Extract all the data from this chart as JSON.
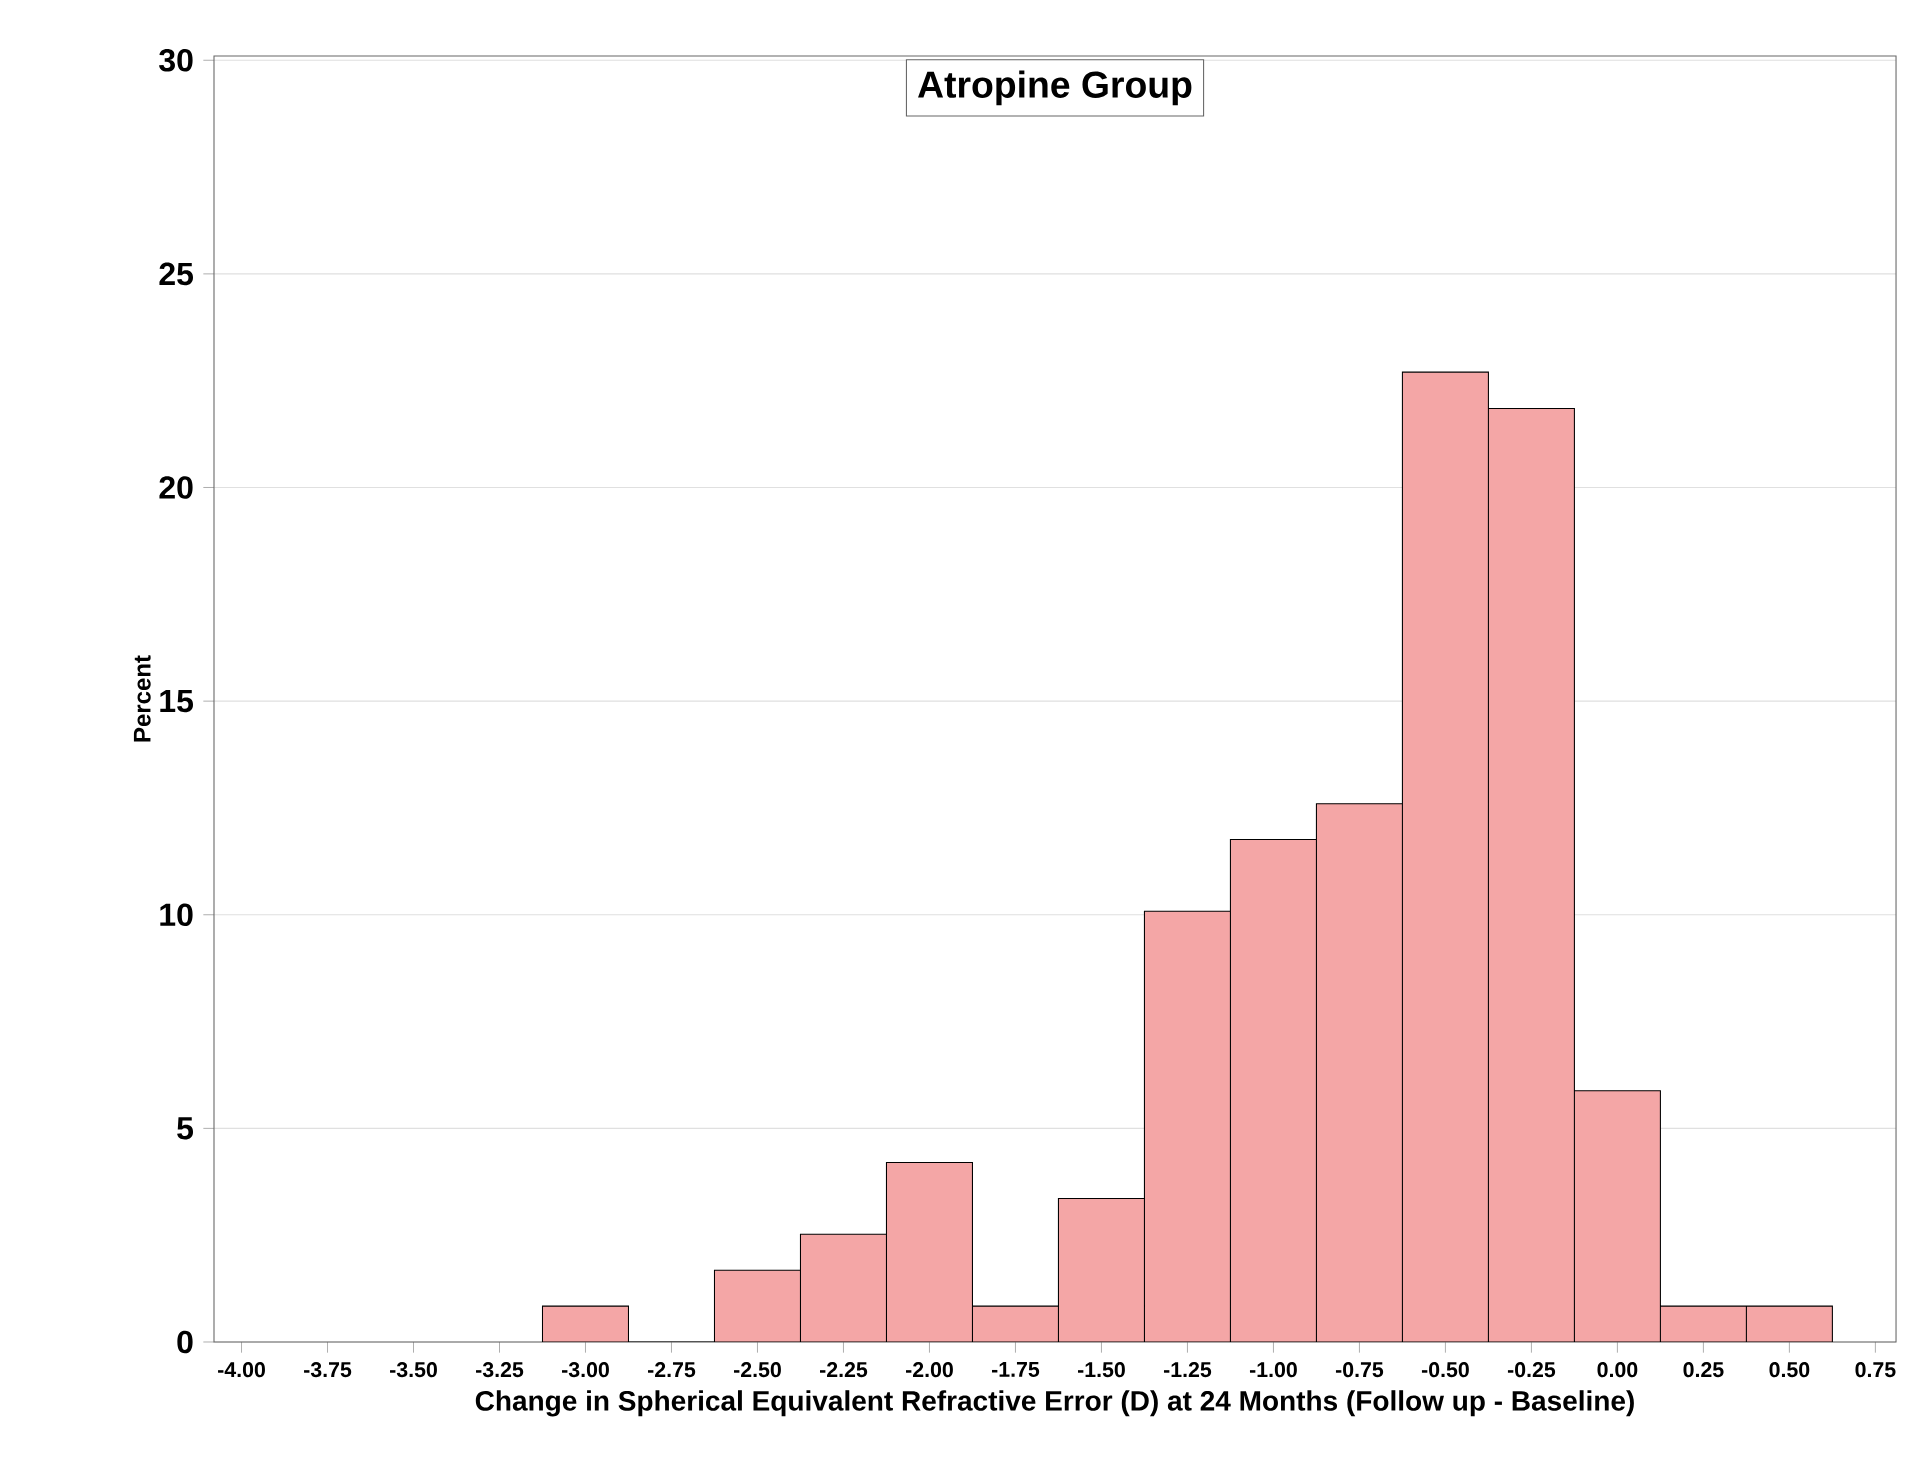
{
  "chart_data": {
    "type": "histogram",
    "title": "Atropine Group",
    "xlabel": "Change in Spherical Equivalent Refractive Error (D) at 24 Months (Follow up - Baseline)",
    "ylabel": "Percent",
    "bins": [
      -3.125,
      -2.875,
      -2.625,
      -2.375,
      -2.125,
      -1.875,
      -1.625,
      -1.375,
      -1.125,
      -0.875,
      -0.625,
      -0.375,
      -0.125,
      0.125,
      0.375,
      0.625
    ],
    "values": [
      0.84,
      0,
      1.68,
      2.52,
      4.2,
      0.84,
      3.36,
      10.08,
      11.76,
      12.6,
      22.7,
      21.85,
      5.88,
      0.84,
      0.84
    ],
    "color": "#f4a6a6",
    "xlim": [
      -4.08,
      0.81
    ],
    "xticks": [
      {
        "value": -4,
        "label": "-4.00"
      },
      {
        "value": -3.75,
        "label": "-3.75"
      },
      {
        "value": -3.5,
        "label": "-3.50"
      },
      {
        "value": -3.25,
        "label": "-3.25"
      },
      {
        "value": -3,
        "label": "-3.00"
      },
      {
        "value": -2.75,
        "label": "-2.75"
      },
      {
        "value": -2.5,
        "label": "-2.50"
      },
      {
        "value": -2.25,
        "label": "-2.25"
      },
      {
        "value": -2,
        "label": "-2.00"
      },
      {
        "value": -1.75,
        "label": "-1.75"
      },
      {
        "value": -1.5,
        "label": "-1.50"
      },
      {
        "value": -1.25,
        "label": "-1.25"
      },
      {
        "value": -1,
        "label": "-1.00"
      },
      {
        "value": -0.75,
        "label": "-0.75"
      },
      {
        "value": -0.5,
        "label": "-0.50"
      },
      {
        "value": -0.25,
        "label": "-0.25"
      },
      {
        "value": 0,
        "label": "0.00"
      },
      {
        "value": 0.25,
        "label": "0.25"
      },
      {
        "value": 0.5,
        "label": "0.50"
      },
      {
        "value": 0.75,
        "label": "0.75"
      }
    ],
    "ylim": [
      0,
      30.1
    ],
    "yticks": [
      0,
      5,
      10,
      15,
      20,
      25,
      30
    ],
    "grid": "y"
  }
}
